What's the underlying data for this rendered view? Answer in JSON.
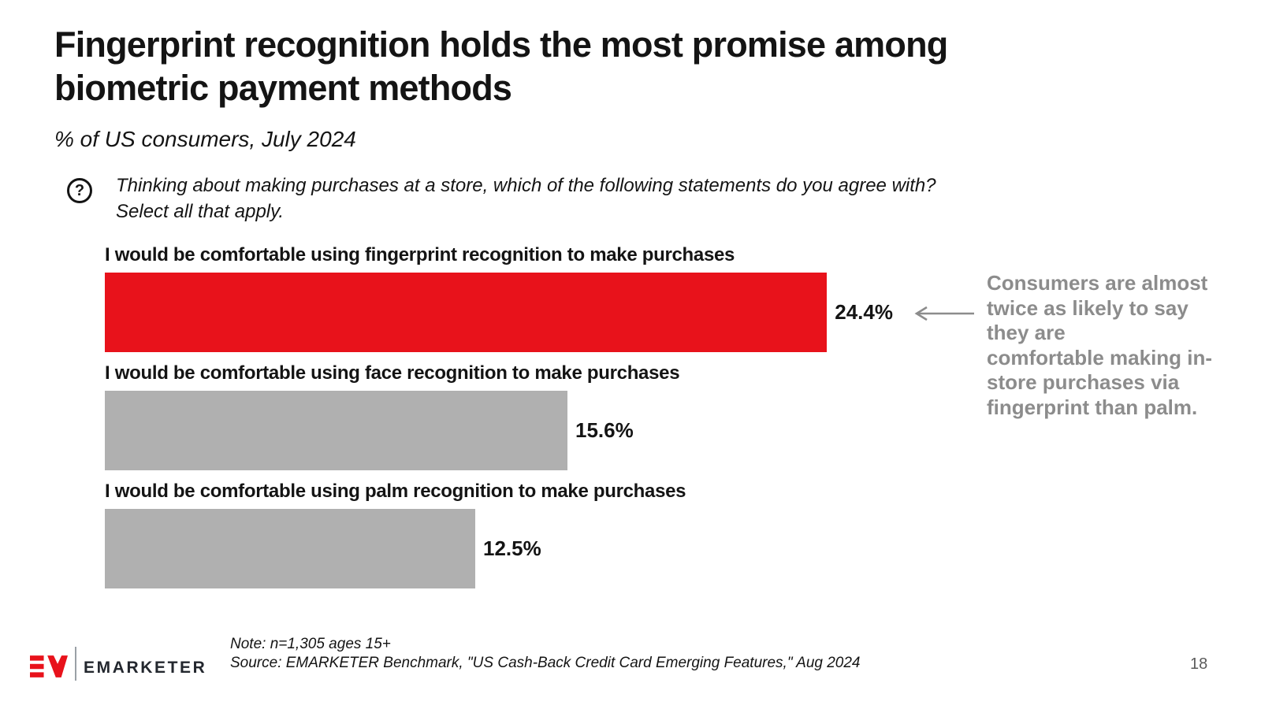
{
  "brand": {
    "red": "#E8121B",
    "bar_gray": "#B0B0B0",
    "annotation_gray": "#8C8C8C"
  },
  "header": {
    "title": "Fingerprint recognition holds the most promise among biometric payment methods",
    "subtitle": "% of US consumers, July 2024"
  },
  "question": {
    "icon_glyph": "?",
    "text": "Thinking about making purchases at a store, which of the following statements do you agree with?\nSelect all that apply."
  },
  "chart_data": {
    "type": "bar",
    "orientation": "horizontal",
    "unit": "%",
    "title": "Fingerprint recognition holds the most promise among biometric payment methods",
    "categories": [
      "I would be comfortable using fingerprint recognition to make purchases",
      "I would be comfortable using face recognition to make purchases",
      "I would be comfortable using palm recognition to make purchases"
    ],
    "values": [
      24.4,
      15.6,
      12.5
    ],
    "value_labels": [
      "24.4%",
      "15.6%",
      "12.5%"
    ],
    "bar_colors": [
      "#E8121B",
      "#B0B0B0",
      "#B0B0B0"
    ],
    "highlight_index": 0,
    "xlim": [
      0,
      25
    ],
    "grid": false,
    "axes_shown": false,
    "value_label_position": "right-of-bar"
  },
  "annotation": {
    "text": "Consumers are almost\ntwice as likely to say\nthey are\ncomfortable making in-\nstore purchases via\nfingerprint than palm.",
    "color": "#8C8C8C",
    "arrow": "left-arrow"
  },
  "footer": {
    "logo_text": "EMARKETER",
    "note": "Note: n=1,305 ages 15+",
    "source": "Source: EMARKETER Benchmark, \"US Cash-Back Credit Card Emerging Features,\" Aug 2024",
    "page_number": "18"
  }
}
